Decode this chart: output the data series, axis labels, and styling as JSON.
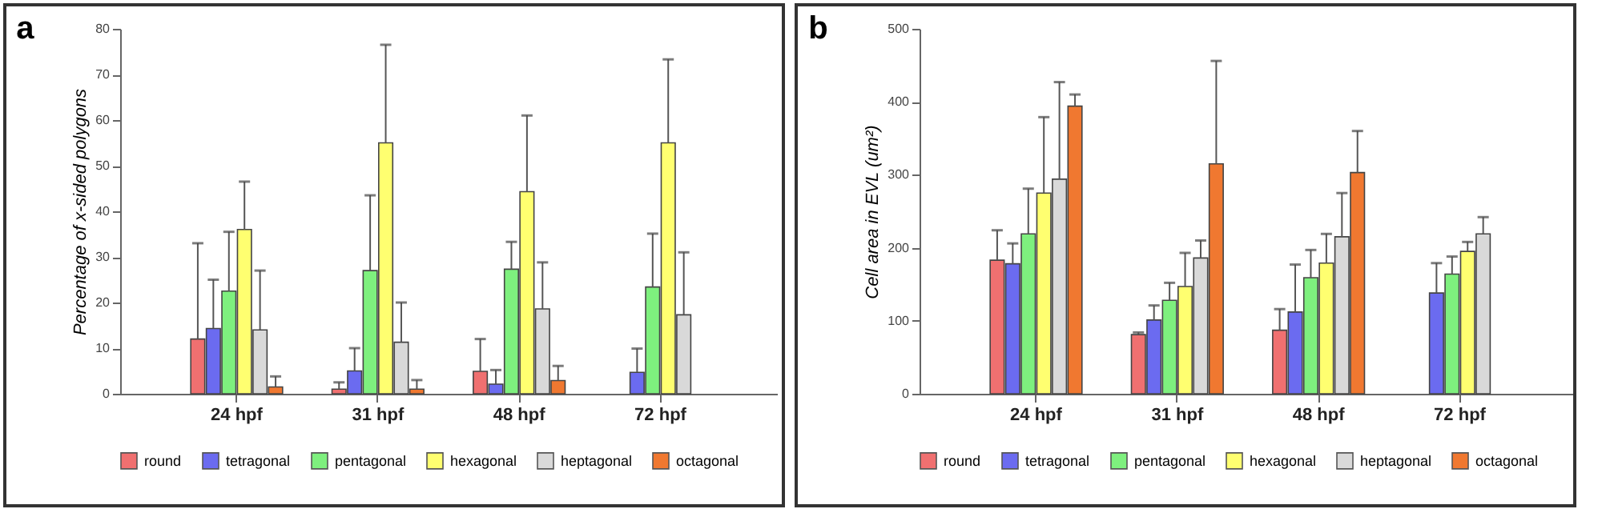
{
  "chart_data": [
    {
      "type": "bar",
      "title": "a",
      "ylabel": "Percentage of x-sided polygons",
      "categories": [
        "24 hpf",
        "31 hpf",
        "48 hpf",
        "72 hpf"
      ],
      "ylim": [
        0,
        80
      ],
      "yticks": [
        0,
        10,
        20,
        30,
        40,
        50,
        60,
        70,
        80
      ],
      "legend": "bottom",
      "series": [
        {
          "name": "round",
          "color": "#f07070",
          "values": [
            12,
            1,
            4.9,
            null
          ],
          "errors": [
            [
              12,
              33
            ],
            [
              1,
              2.5
            ],
            [
              4.9,
              12
            ],
            null
          ]
        },
        {
          "name": "tetragonal",
          "color": "#6b6bf0",
          "values": [
            14.3,
            5,
            2.1,
            4.7
          ],
          "errors": [
            [
              14.3,
              25
            ],
            [
              5,
              10
            ],
            [
              2.1,
              5.2
            ],
            [
              4.7,
              9.9
            ]
          ]
        },
        {
          "name": "pentagonal",
          "color": "#7ef07e",
          "values": [
            22.5,
            27,
            27.3,
            23.4
          ],
          "errors": [
            [
              22.5,
              35.5
            ],
            [
              27,
              43.5
            ],
            [
              27.3,
              33.3
            ],
            [
              23.4,
              35.1
            ]
          ]
        },
        {
          "name": "hexagonal",
          "color": "#ffff70",
          "values": [
            36,
            55,
            44.3,
            55
          ],
          "errors": [
            [
              36,
              46.5
            ],
            [
              55,
              76.5
            ],
            [
              44.3,
              61
            ],
            [
              55,
              73.3
            ]
          ]
        },
        {
          "name": "heptagonal",
          "color": "#d9d9d9",
          "values": [
            14,
            11.3,
            18.6,
            17.3
          ],
          "errors": [
            [
              14,
              27
            ],
            [
              11.3,
              20
            ],
            [
              18.6,
              28.8
            ],
            [
              17.3,
              31
            ]
          ]
        },
        {
          "name": "octagonal",
          "color": "#f07830",
          "values": [
            1.5,
            1,
            2.9,
            null
          ],
          "errors": [
            [
              1.5,
              3.8
            ],
            [
              1,
              3
            ],
            [
              2.9,
              6.1
            ],
            null
          ]
        }
      ]
    },
    {
      "type": "bar",
      "title": "b",
      "ylabel": "Cell area in EVL (um²)",
      "categories": [
        "24 hpf",
        "31 hpf",
        "48 hpf",
        "72 hpf"
      ],
      "ylim": [
        0,
        500
      ],
      "yticks": [
        0,
        100,
        200,
        300,
        400,
        500
      ],
      "legend": "bottom",
      "series": [
        {
          "name": "round",
          "color": "#f07070",
          "values": [
            183,
            81,
            87,
            null
          ],
          "errors": [
            [
              183,
              224
            ],
            [
              81,
              84
            ],
            [
              87,
              116
            ],
            null
          ]
        },
        {
          "name": "tetragonal",
          "color": "#6b6bf0",
          "values": [
            178,
            101,
            112,
            138
          ],
          "errors": [
            [
              178,
              206
            ],
            [
              101,
              121
            ],
            [
              112,
              177
            ],
            [
              138,
              179
            ]
          ]
        },
        {
          "name": "pentagonal",
          "color": "#7ef07e",
          "values": [
            219,
            128,
            159,
            164
          ],
          "errors": [
            [
              219,
              281
            ],
            [
              128,
              152
            ],
            [
              159,
              197
            ],
            [
              164,
              188
            ]
          ]
        },
        {
          "name": "hexagonal",
          "color": "#ffff70",
          "values": [
            275,
            147,
            179,
            195
          ],
          "errors": [
            [
              275,
              379
            ],
            [
              147,
              193
            ],
            [
              179,
              219
            ],
            [
              195,
              208
            ]
          ]
        },
        {
          "name": "heptagonal",
          "color": "#d9d9d9",
          "values": [
            294,
            186,
            215,
            219
          ],
          "errors": [
            [
              294,
              427
            ],
            [
              186,
              210
            ],
            [
              215,
              275
            ],
            [
              219,
              242
            ]
          ]
        },
        {
          "name": "octagonal",
          "color": "#f07830",
          "values": [
            394,
            315,
            303,
            null
          ],
          "errors": [
            [
              394,
              410
            ],
            [
              315,
              456
            ],
            [
              303,
              360
            ],
            null
          ]
        }
      ]
    }
  ]
}
